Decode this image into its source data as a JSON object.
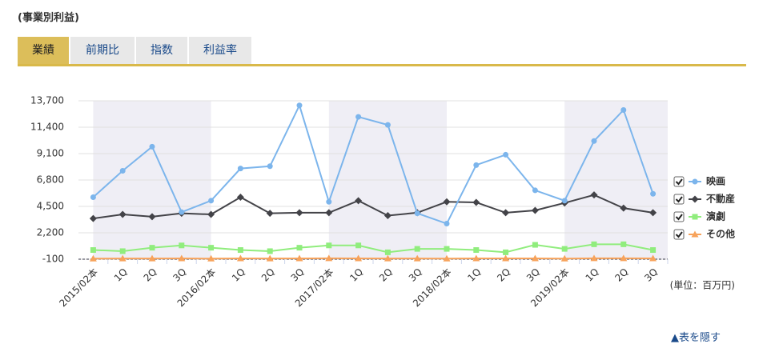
{
  "header": {
    "title": "(事業別利益)"
  },
  "tabs": [
    "業績",
    "前期比",
    "指数",
    "利益率"
  ],
  "chart_data": {
    "type": "line",
    "categories": [
      "2015/02本",
      "1Q",
      "2Q",
      "3Q",
      "2016/02本",
      "1Q",
      "2Q",
      "3Q",
      "2017/02本",
      "1Q",
      "2Q",
      "3Q",
      "2018/02本",
      "1Q",
      "2Q",
      "3Q",
      "2019/02本",
      "1Q",
      "2Q",
      "3Q"
    ],
    "series": [
      {
        "name": "映画",
        "color": "#7cb5ec",
        "marker": "circle",
        "values": [
          5300,
          7600,
          9700,
          4000,
          5000,
          7800,
          8000,
          13300,
          4900,
          12300,
          11600,
          3900,
          3000,
          8100,
          9000,
          5900,
          5000,
          10200,
          12900,
          5600
        ]
      },
      {
        "name": "不動産",
        "color": "#434348",
        "marker": "diamond",
        "values": [
          3450,
          3800,
          3600,
          3900,
          3800,
          5300,
          3900,
          3950,
          3950,
          5000,
          3700,
          3950,
          4900,
          4850,
          3950,
          4150,
          4800,
          5500,
          4350,
          3950
        ]
      },
      {
        "name": "演劇",
        "color": "#90ed7d",
        "marker": "square",
        "values": [
          700,
          600,
          900,
          1100,
          900,
          700,
          600,
          900,
          1100,
          1100,
          500,
          800,
          800,
          700,
          500,
          1150,
          800,
          1200,
          1200,
          700
        ]
      },
      {
        "name": "その他",
        "color": "#f7a35c",
        "marker": "triangle",
        "values": [
          -50,
          -40,
          -40,
          -30,
          -50,
          -30,
          -40,
          -30,
          -20,
          -30,
          -40,
          -40,
          -50,
          -30,
          -30,
          -30,
          -50,
          -20,
          -20,
          -30
        ]
      }
    ],
    "ylim": [
      -100,
      13700
    ],
    "yticks": [
      -100,
      {
        "value": 2200,
        "label": "2,200"
      },
      {
        "value": 4500,
        "label": "4,500"
      },
      {
        "value": 6800,
        "label": "6,800"
      },
      {
        "value": 9100,
        "label": "9,100"
      },
      {
        "value": 11400,
        "label": "11,400"
      },
      {
        "value": 13700,
        "label": "13,700"
      }
    ],
    "grid": true
  },
  "unit_note": "(単位：百万円)",
  "toggle_link": "▲表を隠す"
}
